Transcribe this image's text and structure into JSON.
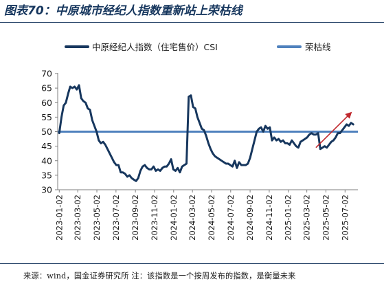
{
  "header": {
    "title": "图表70：中原城市经纪人指数重新站上荣枯线"
  },
  "footer": {
    "source": "来源：wind，国金证券研究所 注：该指数是一个按周发布的指数，是衡量未来"
  },
  "chart_data": {
    "type": "line",
    "title": "",
    "xlabel": "",
    "ylabel": "",
    "ylim": [
      30,
      70
    ],
    "yticks": [
      30,
      35,
      40,
      45,
      50,
      55,
      60,
      65,
      70
    ],
    "xlim": [
      "2022-12-28",
      "2025-08-12"
    ],
    "xticks": [
      "2023-01-02",
      "2023-03-02",
      "2023-05-02",
      "2023-07-02",
      "2023-09-02",
      "2023-11-02",
      "2024-01-02",
      "2024-03-02",
      "2024-05-02",
      "2024-07-02",
      "2024-09-02",
      "2024-11-02",
      "2025-01-02",
      "2025-03-02",
      "2025-05-02",
      "2025-07-02"
    ],
    "grid": false,
    "legend": "top",
    "series": [
      {
        "name": "中原经纪人指数（住宅售价）CSI",
        "color": "#17375e",
        "x": [
          "2023-01-02",
          "2023-01-09",
          "2023-01-16",
          "2023-01-23",
          "2023-01-30",
          "2023-02-06",
          "2023-02-13",
          "2023-02-20",
          "2023-02-27",
          "2023-03-06",
          "2023-03-13",
          "2023-03-20",
          "2023-03-27",
          "2023-04-03",
          "2023-04-10",
          "2023-04-17",
          "2023-04-24",
          "2023-05-01",
          "2023-05-08",
          "2023-05-15",
          "2023-05-22",
          "2023-05-29",
          "2023-06-05",
          "2023-06-12",
          "2023-06-19",
          "2023-06-26",
          "2023-07-03",
          "2023-07-10",
          "2023-07-17",
          "2023-07-24",
          "2023-07-31",
          "2023-08-07",
          "2023-08-14",
          "2023-08-21",
          "2023-08-28",
          "2023-09-04",
          "2023-09-11",
          "2023-09-18",
          "2023-09-25",
          "2023-10-02",
          "2023-10-09",
          "2023-10-16",
          "2023-10-23",
          "2023-10-30",
          "2023-11-06",
          "2023-11-13",
          "2023-11-20",
          "2023-11-27",
          "2023-12-04",
          "2023-12-11",
          "2023-12-18",
          "2023-12-25",
          "2024-01-01",
          "2024-01-08",
          "2024-01-15",
          "2024-01-22",
          "2024-01-29",
          "2024-02-05",
          "2024-02-12",
          "2024-02-19",
          "2024-02-26",
          "2024-03-04",
          "2024-03-11",
          "2024-03-18",
          "2024-03-25",
          "2024-04-01",
          "2024-04-08",
          "2024-04-15",
          "2024-04-22",
          "2024-04-29",
          "2024-05-06",
          "2024-05-13",
          "2024-05-20",
          "2024-05-27",
          "2024-06-03",
          "2024-06-10",
          "2024-06-17",
          "2024-06-24",
          "2024-07-01",
          "2024-07-08",
          "2024-07-15",
          "2024-07-22",
          "2024-07-29",
          "2024-08-05",
          "2024-08-12",
          "2024-08-19",
          "2024-08-26",
          "2024-09-02",
          "2024-09-09",
          "2024-09-16",
          "2024-09-23",
          "2024-09-30",
          "2024-10-07",
          "2024-10-14",
          "2024-10-21",
          "2024-10-28",
          "2024-11-04",
          "2024-11-11",
          "2024-11-18",
          "2024-11-25",
          "2024-12-02",
          "2024-12-09",
          "2024-12-16",
          "2024-12-23",
          "2024-12-30",
          "2025-01-06",
          "2025-01-13",
          "2025-01-20",
          "2025-01-27",
          "2025-02-03",
          "2025-02-10",
          "2025-02-17",
          "2025-02-24",
          "2025-03-03",
          "2025-03-10",
          "2025-03-17",
          "2025-03-24",
          "2025-03-31",
          "2025-04-07",
          "2025-04-14",
          "2025-04-21",
          "2025-04-28",
          "2025-05-05",
          "2025-05-12",
          "2025-05-19",
          "2025-05-26",
          "2025-06-02",
          "2025-06-09",
          "2025-06-16",
          "2025-06-23",
          "2025-06-30",
          "2025-07-07",
          "2025-07-14",
          "2025-07-21",
          "2025-07-28"
        ],
        "values": [
          49.5,
          55.0,
          59.0,
          60.0,
          63.0,
          65.5,
          65.0,
          65.5,
          64.5,
          66.0,
          61.5,
          60.5,
          60.0,
          58.0,
          57.5,
          54.0,
          52.0,
          50.0,
          47.0,
          46.0,
          46.5,
          45.5,
          44.0,
          42.5,
          41.0,
          39.5,
          38.5,
          38.5,
          36.0,
          36.0,
          35.5,
          34.5,
          35.0,
          34.0,
          33.5,
          33.0,
          34.0,
          36.5,
          38.0,
          38.5,
          37.5,
          37.0,
          37.0,
          38.0,
          36.5,
          37.0,
          36.5,
          37.5,
          38.0,
          38.0,
          39.0,
          40.5,
          37.0,
          36.5,
          37.5,
          36.0,
          38.0,
          38.5,
          39.0,
          62.0,
          62.5,
          58.5,
          58.0,
          55.0,
          53.0,
          51.0,
          50.5,
          48.5,
          46.0,
          44.0,
          42.5,
          41.5,
          41.0,
          40.5,
          40.0,
          39.5,
          39.0,
          39.0,
          38.5,
          38.0,
          40.0,
          37.5,
          39.5,
          38.5,
          38.5,
          38.5,
          39.0,
          41.0,
          44.0,
          47.0,
          50.0,
          51.0,
          51.5,
          50.0,
          52.0,
          51.0,
          51.5,
          47.0,
          48.0,
          47.0,
          47.5,
          46.5,
          47.0,
          46.0,
          46.0,
          45.5,
          47.0,
          46.0,
          45.0,
          44.5,
          46.5,
          47.0,
          47.5,
          48.0,
          49.0,
          49.5,
          49.0,
          49.0,
          49.5,
          44.0,
          44.5,
          45.0,
          44.5,
          45.5,
          46.5,
          47.0,
          48.0,
          49.5,
          49.5,
          50.5,
          51.5,
          52.5,
          52.0,
          53.0,
          52.5
        ]
      },
      {
        "name": "荣枯线",
        "color": "#4f81bd",
        "x": [
          "2022-12-28",
          "2025-08-12"
        ],
        "values": [
          50,
          50
        ]
      }
    ],
    "annotations": [
      {
        "type": "arrow",
        "color": "#c0282e",
        "from": [
          "2025-03-31",
          44.5
        ],
        "to": [
          "2025-07-21",
          56.5
        ]
      }
    ]
  }
}
